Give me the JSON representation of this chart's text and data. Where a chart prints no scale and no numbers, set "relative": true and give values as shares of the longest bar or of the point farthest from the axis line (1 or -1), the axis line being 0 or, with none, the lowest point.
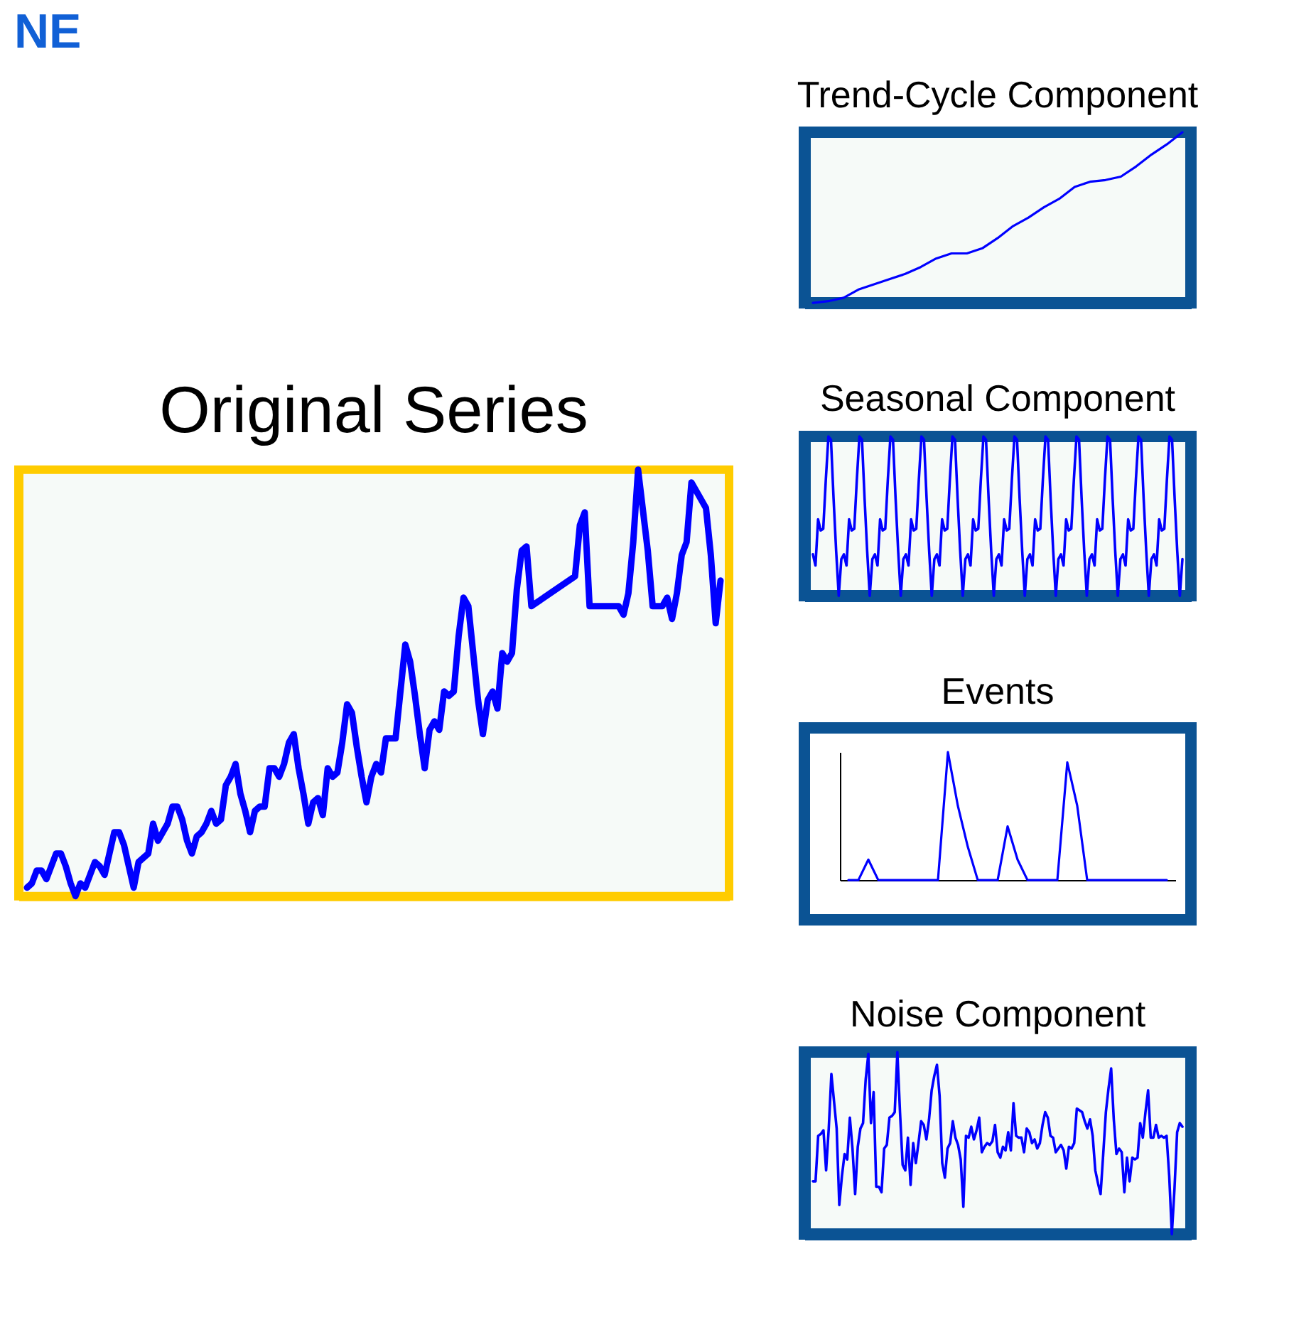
{
  "chart_data": [
    {
      "type": "line",
      "title": "Original Series",
      "annotations": [
        "NE"
      ],
      "relative": true,
      "color": "#0000ff",
      "categories": [
        null,
        null,
        null,
        null,
        null,
        null,
        null,
        null,
        null,
        null,
        null,
        null,
        null,
        null,
        null,
        null,
        null,
        null,
        null,
        null,
        null,
        null,
        null,
        null,
        null,
        null,
        null,
        null,
        null,
        null,
        null,
        null,
        null,
        null,
        null,
        null,
        null,
        null,
        null,
        null,
        null,
        null,
        null,
        null,
        null,
        null,
        null,
        null,
        null,
        null,
        null,
        null,
        null,
        null,
        null,
        null,
        null,
        null,
        null,
        null,
        null,
        null,
        null,
        null,
        null,
        null,
        null,
        null,
        null,
        null,
        null,
        null,
        null,
        null,
        null,
        null,
        null,
        null,
        null,
        null,
        null,
        null,
        null,
        null,
        null,
        null,
        null,
        null,
        null,
        null,
        null,
        null,
        null,
        null,
        null,
        null,
        null,
        null,
        null,
        null,
        null,
        null,
        null,
        null,
        null,
        null,
        null,
        null,
        null,
        null,
        null,
        null,
        null,
        null,
        null,
        null,
        null,
        null,
        null,
        null,
        null,
        null,
        null,
        null,
        null,
        null,
        null,
        null,
        null,
        null,
        null,
        null,
        null,
        null,
        null,
        null,
        null,
        null,
        null,
        null,
        null,
        null,
        null,
        null
      ],
      "values": [
        0.02,
        0.03,
        0.06,
        0.06,
        0.04,
        0.07,
        0.1,
        0.1,
        0.07,
        0.03,
        0,
        0.03,
        0.02,
        0.05,
        0.08,
        0.07,
        0.05,
        0.1,
        0.15,
        0.15,
        0.12,
        0.07,
        0.02,
        0.08,
        0.09,
        0.1,
        0.17,
        0.13,
        0.15,
        0.17,
        0.21,
        0.21,
        0.18,
        0.13,
        0.1,
        0.14,
        0.15,
        0.17,
        0.2,
        0.17,
        0.18,
        0.26,
        0.28,
        0.31,
        0.24,
        0.2,
        0.15,
        0.2,
        0.21,
        0.21,
        0.3,
        0.3,
        0.28,
        0.31,
        0.36,
        0.38,
        0.3,
        0.24,
        0.17,
        0.22,
        0.23,
        0.19,
        0.3,
        0.28,
        0.29,
        0.36,
        0.45,
        0.43,
        0.35,
        0.28,
        0.22,
        0.28,
        0.31,
        0.29,
        0.37,
        0.37,
        0.37,
        0.48,
        0.59,
        0.55,
        0.47,
        0.38,
        0.3,
        0.39,
        0.41,
        0.39,
        0.48,
        0.47,
        0.48,
        0.61,
        0.7,
        0.68,
        0.57,
        0.46,
        0.38,
        0.46,
        0.48,
        0.44,
        0.57,
        0.55,
        0.57,
        0.72,
        0.81,
        0.82,
        0.68,
        null,
        null,
        null,
        null,
        null,
        null,
        null,
        null,
        0.75,
        0.87,
        0.9,
        0.68,
        null,
        null,
        null,
        null,
        null,
        0.68,
        0.66,
        0.71,
        0.83,
        1,
        null,
        0.81,
        0.68,
        null,
        0.68,
        0.7,
        0.65,
        0.71,
        0.8,
        0.83,
        0.97,
        null,
        null,
        0.91,
        0.8,
        0.64,
        0.74
      ]
    },
    {
      "type": "line",
      "title": "Trend-Cycle Component",
      "relative": true,
      "color": "#0000ff",
      "categories": [
        null,
        null,
        null,
        null,
        null,
        null,
        null,
        null,
        null,
        null,
        null,
        null,
        null,
        null,
        null,
        null,
        null,
        null,
        null,
        null,
        null,
        null,
        null,
        null,
        null
      ],
      "values": [
        0,
        0.01,
        0.03,
        0.08,
        0.11,
        0.14,
        0.17,
        0.21,
        0.26,
        0.29,
        0.29,
        0.32,
        0.38,
        0.45,
        0.5,
        0.56,
        0.61,
        0.68,
        0.71,
        0.72,
        0.74,
        0.8,
        0.87,
        0.93,
        1
      ]
    },
    {
      "type": "line",
      "title": "Seasonal Component",
      "relative": true,
      "color": "#0000ff",
      "categories": [
        null,
        null,
        null,
        null,
        null,
        null,
        null,
        null,
        null,
        null,
        null,
        null,
        null,
        null,
        null,
        null,
        null,
        null,
        null,
        null,
        null,
        null,
        null,
        null,
        null,
        null,
        null,
        null,
        null,
        null,
        null,
        null,
        null,
        null,
        null,
        null,
        null,
        null,
        null,
        null,
        null,
        null,
        null,
        null,
        null,
        null,
        null,
        null,
        null,
        null,
        null,
        null,
        null,
        null,
        null,
        null,
        null,
        null,
        null,
        null,
        null,
        null,
        null,
        null,
        null,
        null,
        null,
        null,
        null,
        null,
        null,
        null,
        null,
        null,
        null,
        null,
        null,
        null,
        null,
        null,
        null,
        null,
        null,
        null,
        null,
        null,
        null,
        null,
        null,
        null,
        null,
        null,
        null,
        null,
        null,
        null,
        null,
        null,
        null,
        null,
        null,
        null,
        null,
        null,
        null,
        null,
        null,
        null,
        null,
        null,
        null,
        null,
        null,
        null,
        null,
        null,
        null,
        null,
        null,
        null,
        null,
        null,
        null,
        null,
        null,
        null,
        null,
        null,
        null,
        null,
        null,
        null,
        null,
        null,
        null,
        null,
        null,
        null,
        null,
        null,
        null,
        null,
        null,
        null
      ],
      "values": [
        0.26,
        0.19,
        0.48,
        0.41,
        0.42,
        0.73,
        1,
        0.98,
        0.61,
        0.28,
        0,
        0.23,
        0.26,
        0.19,
        0.48,
        0.41,
        0.42,
        0.73,
        1,
        0.98,
        0.61,
        0.28,
        0,
        0.23,
        0.26,
        0.19,
        0.48,
        0.41,
        0.42,
        0.73,
        1,
        0.98,
        0.61,
        0.28,
        0,
        0.23,
        0.26,
        0.19,
        0.48,
        0.41,
        0.42,
        0.73,
        1,
        0.98,
        0.61,
        0.28,
        0,
        0.23,
        0.26,
        0.19,
        0.48,
        0.41,
        0.42,
        0.73,
        1,
        0.98,
        0.61,
        0.28,
        0,
        0.23,
        0.26,
        0.19,
        0.48,
        0.41,
        0.42,
        0.73,
        1,
        0.98,
        0.61,
        0.28,
        0,
        0.23,
        0.26,
        0.19,
        0.48,
        0.41,
        0.42,
        0.73,
        1,
        0.98,
        0.61,
        0.28,
        0,
        0.23,
        0.26,
        0.19,
        0.48,
        0.41,
        0.42,
        0.73,
        1,
        0.98,
        0.61,
        0.28,
        0,
        0.23,
        0.26,
        0.19,
        0.48,
        0.41,
        0.42,
        0.73,
        1,
        0.98,
        0.61,
        0.28,
        0,
        0.23,
        0.26,
        0.19,
        0.48,
        0.41,
        0.42,
        0.73,
        1,
        0.98,
        0.61,
        0.28,
        0,
        0.23,
        0.26,
        0.19,
        0.48,
        0.41,
        0.42,
        0.73,
        1,
        0.98,
        0.61,
        0.28,
        0,
        0.23,
        0.26,
        0.19,
        0.48,
        0.41,
        0.42,
        0.73,
        1,
        0.98,
        0.61,
        0.28,
        0,
        0.23
      ]
    },
    {
      "type": "line",
      "title": "Events",
      "relative": true,
      "color": "#0000ff",
      "categories": [
        null,
        null,
        null,
        null,
        null,
        null,
        null,
        null,
        null,
        null,
        null,
        null,
        null,
        null,
        null,
        null,
        null,
        null,
        null,
        null,
        null,
        null,
        null,
        null,
        null,
        null,
        null,
        null,
        null,
        null,
        null,
        null,
        null
      ],
      "values": [
        0,
        0,
        0.16,
        0,
        0,
        0,
        0,
        0,
        0,
        0,
        1,
        0.58,
        0.26,
        0,
        0,
        0,
        0.42,
        0.16,
        0,
        0,
        0,
        0,
        0.92,
        0.58,
        0,
        0,
        0,
        0,
        0,
        0,
        0,
        0,
        0
      ]
    },
    {
      "type": "line",
      "title": "Noise  Component",
      "relative": true,
      "color": "#0000ff",
      "categories": [
        null,
        null,
        null,
        null,
        null,
        null,
        null,
        null,
        null,
        null,
        null,
        null,
        null,
        null,
        null,
        null,
        null,
        null,
        null,
        null,
        null,
        null,
        null,
        null,
        null,
        null,
        null,
        null,
        null,
        null,
        null,
        null,
        null,
        null,
        null,
        null,
        null,
        null,
        null,
        null,
        null,
        null,
        null,
        null,
        null,
        null,
        null,
        null,
        null,
        null,
        null,
        null,
        null,
        null,
        null,
        null,
        null,
        null,
        null,
        null,
        null,
        null,
        null,
        null,
        null,
        null,
        null,
        null,
        null,
        null,
        null,
        null,
        null,
        null,
        null,
        null,
        null,
        null,
        null,
        null,
        null,
        null,
        null,
        null,
        null,
        null,
        null,
        null,
        null,
        null,
        null,
        null,
        null,
        null,
        null,
        null,
        null,
        null,
        null,
        null,
        null,
        null,
        null,
        null,
        null,
        null,
        null,
        null,
        null,
        null,
        null,
        null,
        null,
        null,
        null,
        null,
        null,
        null,
        null,
        null,
        null,
        null,
        null,
        null,
        null,
        null,
        null,
        null,
        null,
        null,
        null,
        null,
        null,
        null,
        null,
        null,
        null,
        null,
        null,
        null,
        null
      ],
      "values": [
        0.29,
        0.29,
        0.54,
        0.55,
        0.57,
        0.35,
        0.58,
        0.88,
        0.73,
        0.58,
        0.16,
        0.32,
        0.44,
        0.41,
        0.64,
        0.47,
        0.22,
        0.48,
        0.58,
        0.61,
        0.85,
        0.99,
        0.61,
        0.78,
        0.26,
        0.26,
        0.23,
        0.47,
        0.49,
        0.64,
        0.65,
        0.67,
        1,
        0.67,
        0.38,
        0.35,
        0.53,
        0.27,
        0.5,
        0.39,
        0.5,
        0.62,
        0.6,
        0.52,
        0.63,
        0.79,
        0.87,
        0.93,
        0.76,
        0.39,
        0.31,
        0.47,
        0.5,
        0.62,
        0.53,
        0.49,
        0.41,
        0.15,
        0.54,
        0.53,
        0.59,
        0.52,
        0.57,
        0.64,
        0.45,
        0.48,
        0.5,
        0.49,
        0.51,
        0.6,
        0.45,
        0.42,
        0.48,
        0.46,
        0.56,
        0.46,
        0.72,
        0.54,
        0.53,
        0.53,
        0.45,
        0.58,
        0.56,
        0.5,
        0.52,
        0.47,
        0.5,
        0.6,
        0.67,
        0.64,
        0.54,
        0.53,
        0.45,
        0.47,
        0.49,
        0.46,
        0.36,
        0.48,
        0.47,
        0.5,
        0.69,
        0.68,
        0.67,
        0.62,
        0.58,
        0.63,
        0.54,
        0.35,
        0.28,
        0.22,
        0.44,
        0.67,
        0.8,
        0.91,
        0.63,
        0.44,
        0.47,
        0.45,
        0.23,
        0.42,
        0.29,
        0.42,
        0.41,
        0.42,
        0.61,
        0.53,
        0.67,
        0.79,
        0.53,
        0.53,
        0.6,
        0.53,
        0.54,
        0.53,
        0.54,
        0.32,
        0,
        0.25,
        0.56,
        0.61,
        0.59
      ]
    }
  ]
}
